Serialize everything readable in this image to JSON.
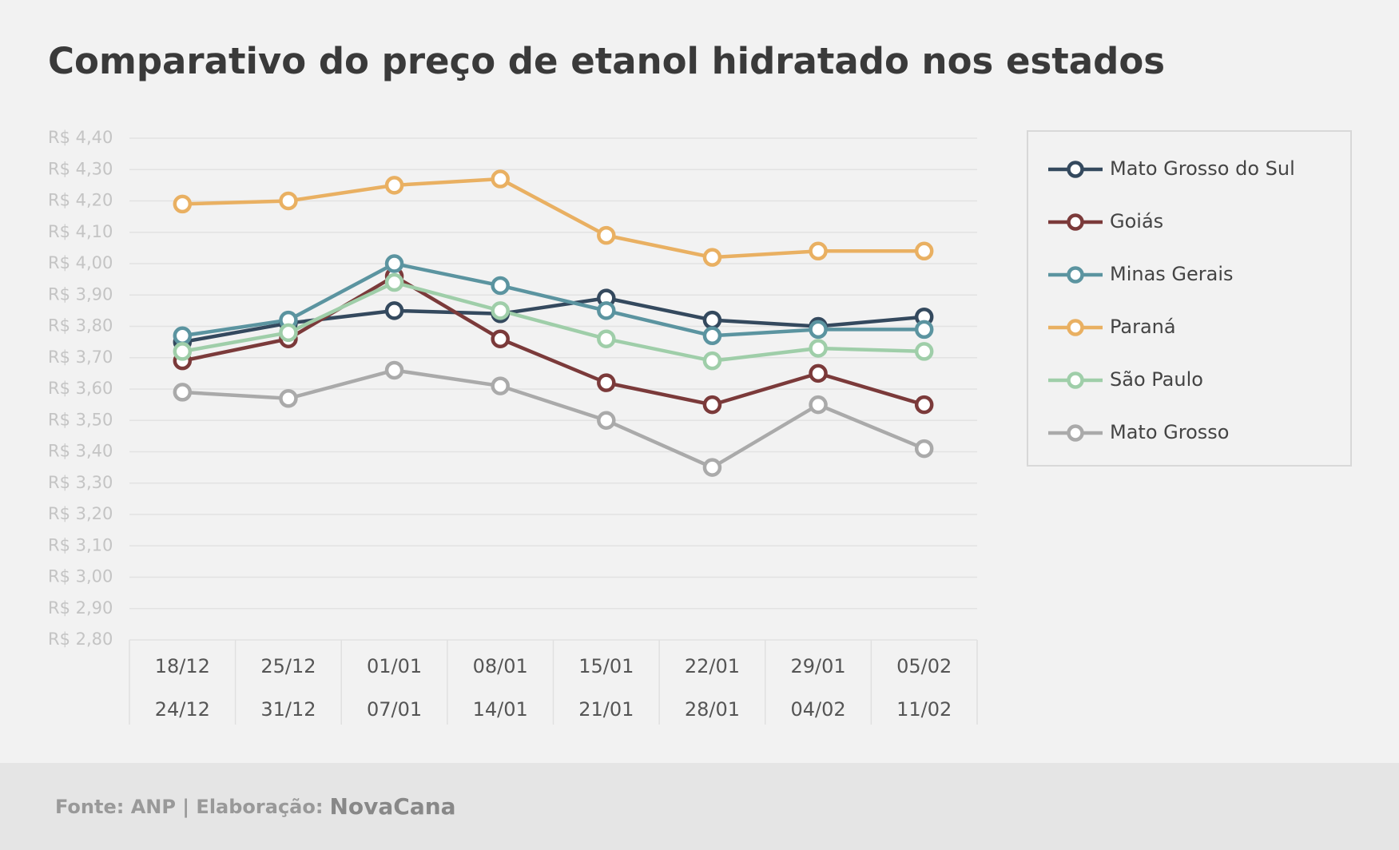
{
  "chart_data": {
    "type": "line",
    "title": "Comparativo do preço de etanol hidratado nos estados",
    "categories": [
      [
        "18/12",
        "24/12"
      ],
      [
        "25/12",
        "31/12"
      ],
      [
        "01/01",
        "07/01"
      ],
      [
        "08/01",
        "14/01"
      ],
      [
        "15/01",
        "21/01"
      ],
      [
        "22/01",
        "28/01"
      ],
      [
        "29/01",
        "04/02"
      ],
      [
        "05/02",
        "11/02"
      ]
    ],
    "series": [
      {
        "name": "Mato Grosso do Sul",
        "color": "#34495e",
        "values": [
          3.75,
          3.81,
          3.85,
          3.84,
          3.89,
          3.82,
          3.8,
          3.83
        ]
      },
      {
        "name": "Goiás",
        "color": "#7b3a3a",
        "values": [
          3.69,
          3.76,
          3.96,
          3.76,
          3.62,
          3.55,
          3.65,
          3.55
        ]
      },
      {
        "name": "Minas Gerais",
        "color": "#5b94a0",
        "values": [
          3.77,
          3.82,
          4.0,
          3.93,
          3.85,
          3.77,
          3.79,
          3.79
        ]
      },
      {
        "name": "Paraná",
        "color": "#e9b062",
        "values": [
          4.19,
          4.2,
          4.25,
          4.27,
          4.09,
          4.02,
          4.04,
          4.04
        ]
      },
      {
        "name": "São Paulo",
        "color": "#9fcea9",
        "values": [
          3.72,
          3.78,
          3.94,
          3.85,
          3.76,
          3.69,
          3.73,
          3.72
        ]
      },
      {
        "name": "Mato Grosso",
        "color": "#aaaaaa",
        "values": [
          3.59,
          3.57,
          3.66,
          3.61,
          3.5,
          3.35,
          3.55,
          3.41
        ]
      }
    ],
    "ylim": [
      2.8,
      4.4
    ],
    "yticks": [
      {
        "value": 2.8,
        "label": "R$ 2,80"
      },
      {
        "value": 2.9,
        "label": "R$ 2,90"
      },
      {
        "value": 3.0,
        "label": "R$ 3,00"
      },
      {
        "value": 3.1,
        "label": "R$ 3,10"
      },
      {
        "value": 3.2,
        "label": "R$ 3,20"
      },
      {
        "value": 3.3,
        "label": "R$ 3,30"
      },
      {
        "value": 3.4,
        "label": "R$ 3,40"
      },
      {
        "value": 3.5,
        "label": "R$ 3,50"
      },
      {
        "value": 3.6,
        "label": "R$ 3,60"
      },
      {
        "value": 3.7,
        "label": "R$ 3,70"
      },
      {
        "value": 3.8,
        "label": "R$ 3,80"
      },
      {
        "value": 3.9,
        "label": "R$ 3,90"
      },
      {
        "value": 4.0,
        "label": "R$ 4,00"
      },
      {
        "value": 4.1,
        "label": "R$ 4,10"
      },
      {
        "value": 4.2,
        "label": "R$ 4,20"
      },
      {
        "value": 4.3,
        "label": "R$ 4,30"
      },
      {
        "value": 4.4,
        "label": "R$ 4,40"
      }
    ],
    "grid": true,
    "legend": "right"
  },
  "footer": {
    "source": "Fonte: ANP | Elaboração:",
    "brand": "NovaCana"
  }
}
